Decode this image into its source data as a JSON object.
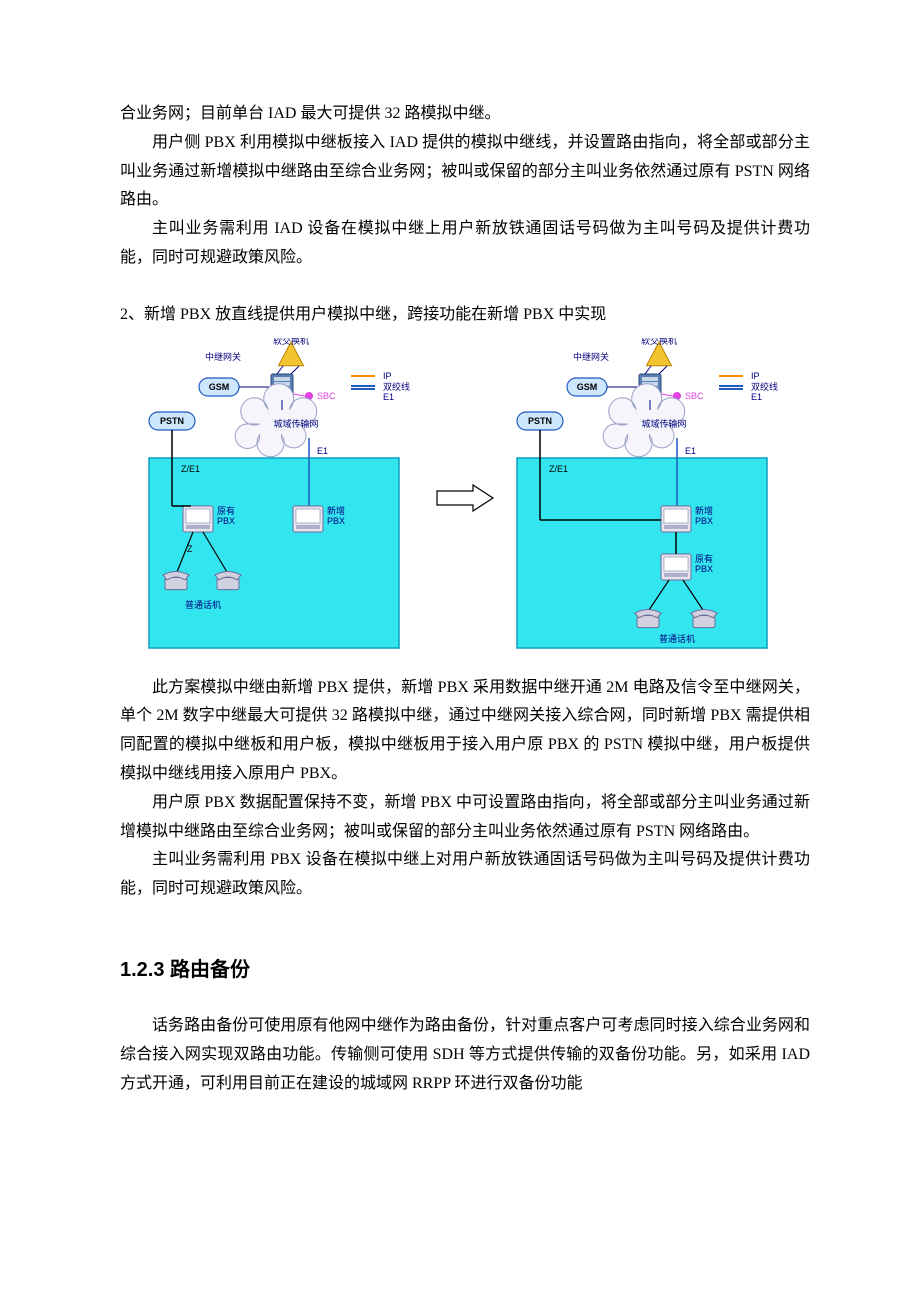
{
  "intro": {
    "p1": "合业务网；目前单台 IAD 最大可提供 32 路模拟中继。",
    "p2": "用户侧 PBX 利用模拟中继板接入 IAD 提供的模拟中继线，并设置路由指向，将全部或部分主叫业务通过新增模拟中继路由至综合业务网；被叫或保留的部分主叫业务依然通过原有 PSTN 网络路由。",
    "p3": "主叫业务需利用 IAD 设备在模拟中继上用户新放铁通固话号码做为主叫号码及提供计费功能，同时可规避政策风险。"
  },
  "section2": {
    "title": "2、新增 PBX 放直线提供用户模拟中继，跨接功能在新增 PBX 中实现",
    "p1": "此方案模拟中继由新增 PBX 提供，新增 PBX 采用数据中继开通 2M 电路及信令至中继网关，单个 2M 数字中继最大可提供 32 路模拟中继，通过中继网关接入综合网，同时新增 PBX 需提供相同配置的模拟中继板和用户板，模拟中继板用于接入用户原 PBX 的 PSTN 模拟中继，用户板提供模拟中继线用接入原用户 PBX。",
    "p2": "用户原 PBX 数据配置保持不变，新增 PBX 中可设置路由指向，将全部或部分主叫业务通过新增模拟中继路由至综合业务网；被叫或保留的部分主叫业务依然通过原有 PSTN 网络路由。",
    "p3": "主叫业务需利用 PBX 设备在模拟中继上对用户新放铁通固话号码做为主叫号码及提供计费功能，同时可规避政策风险。"
  },
  "section3": {
    "heading": "1.2.3  路由备份",
    "p1": "话务路由备份可使用原有他网中继作为路由备份，针对重点客户可考虑同时接入综合业务网和综合接入网实现双路由功能。传输侧可使用 SDH 等方式提供传输的双备份功能。另，如采用 IAD 方式开通，可利用目前正在建设的城域网 RRPP 环进行双备份功能"
  },
  "diagram": {
    "labels": {
      "softswitch": "软交换机",
      "trunk_gw": "中继网关",
      "gsm": "GSM",
      "pstn": "PSTN",
      "sbc": "SBC",
      "ip": "IP",
      "twisted_pair": "双绞线",
      "e1": "E1",
      "metro": "城域传输网",
      "ze1": "Z/E1",
      "orig_pbx": "原有\nPBX",
      "new_pbx": "新增\nPBX",
      "z": "Z",
      "phone": "普通话机"
    },
    "colors": {
      "bg": "#ffffff",
      "box_fill": "#33e5ee",
      "box_stroke": "#0aa0c0",
      "pstn_fill": "#cfe6ff",
      "pstn_stroke": "#1f5bbf",
      "gsm_fill": "#cfe6ff",
      "gsm_stroke": "#1f5bbf",
      "switch_fill": "#f4c430",
      "switch_stroke": "#b8860b",
      "device_fill": "#e5e5ef",
      "device_stroke": "#6a6a9e",
      "sbc": "#e342e3",
      "ip_line": "#ff8c00",
      "tp_line": "#1f5bbf",
      "label_color": "#000080",
      "cloud_fill": "#f5f5fb",
      "cloud_stroke": "#9aa0c7",
      "phone_fill": "#d0d0de",
      "phone_stroke": "#6a6a9e"
    }
  }
}
